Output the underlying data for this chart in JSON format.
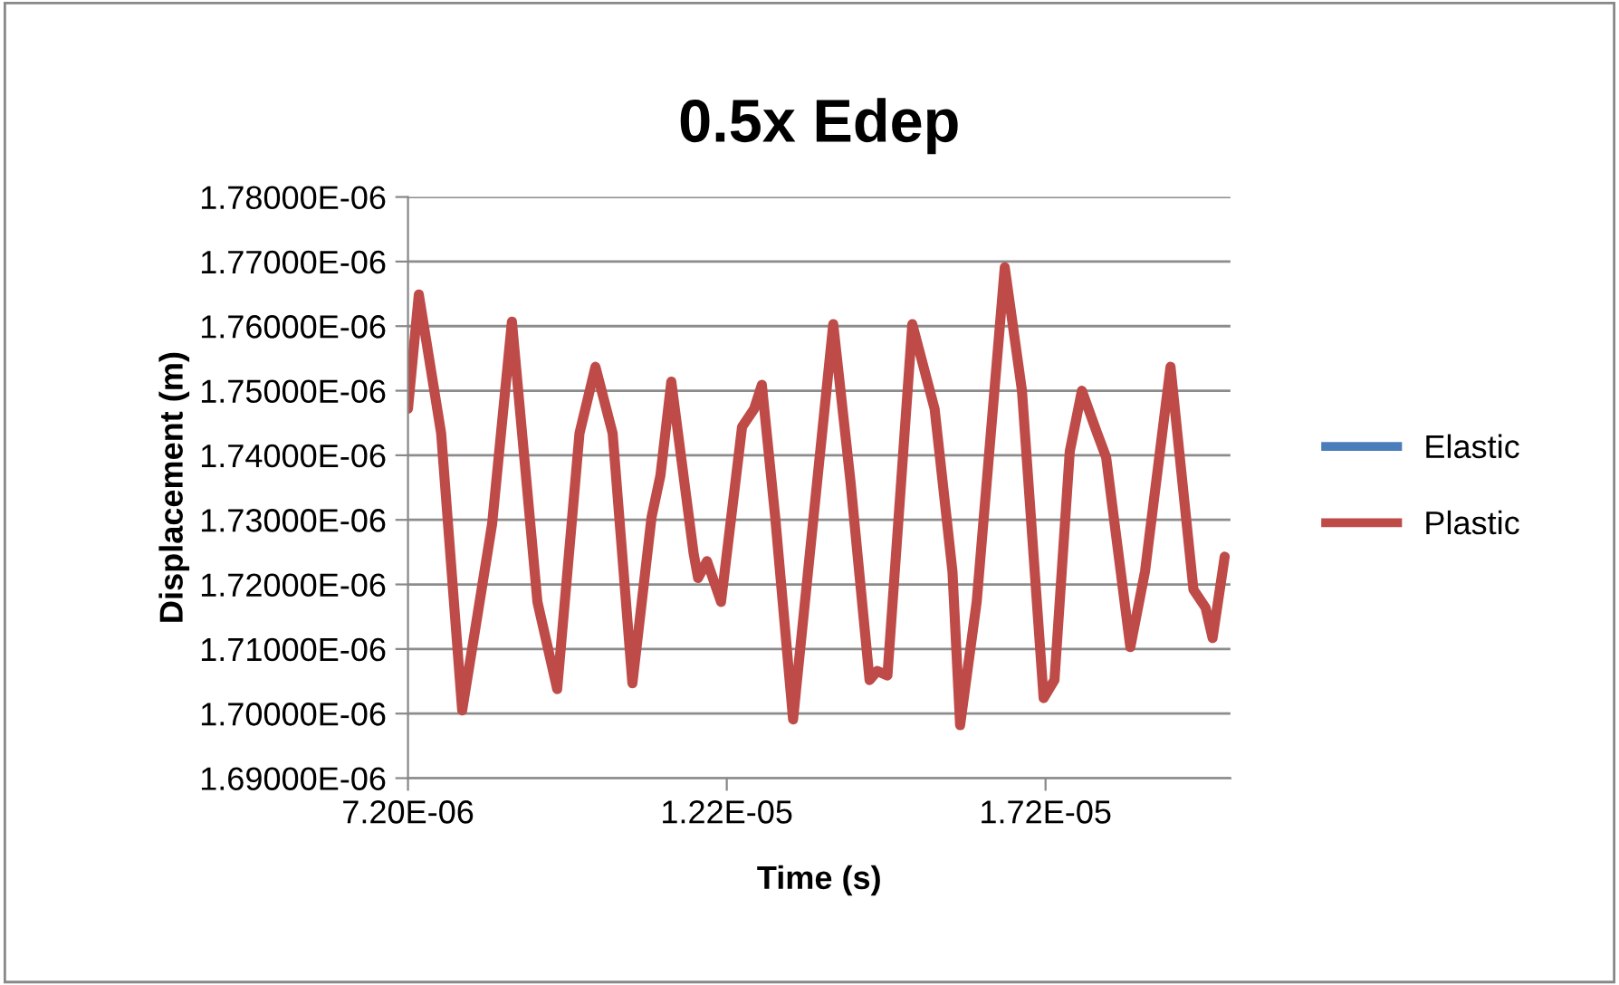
{
  "chart_data": {
    "type": "line",
    "title": "0.5x Edep",
    "xlabel": "Time (s)",
    "ylabel": "Displacement (m)",
    "x": [
      7.2e-06,
      7.37e-06,
      7.72e-06,
      8.05e-06,
      8.52e-06,
      8.83e-06,
      9.23e-06,
      9.54e-06,
      9.89e-06,
      1.014e-05,
      1.041e-05,
      1.072e-05,
      1.102e-05,
      1.116e-05,
      1.133e-05,
      1.168e-05,
      1.175e-05,
      1.189e-05,
      1.211e-05,
      1.244e-05,
      1.263e-05,
      1.275e-05,
      1.296e-05,
      1.324e-05,
      1.357e-05,
      1.387e-05,
      1.414e-05,
      1.444e-05,
      1.456e-05,
      1.472e-05,
      1.511e-05,
      1.546e-05,
      1.574e-05,
      1.586e-05,
      1.612e-05,
      1.656e-05,
      1.683e-05,
      1.717e-05,
      1.734e-05,
      1.758e-05,
      1.777e-05,
      1.801e-05,
      1.815e-05,
      1.853e-05,
      1.876e-05,
      1.916e-05,
      1.952e-05,
      1.971e-05,
      1.982e-05,
      2.001e-05
    ],
    "series": [
      {
        "name": "Elastic",
        "color": "#4a7ebb",
        "values": [
          null,
          null,
          null,
          null,
          null,
          null,
          null,
          null,
          null,
          null,
          null,
          null,
          null,
          null,
          null,
          null,
          null,
          null,
          null,
          null,
          null,
          null,
          null,
          null,
          null,
          null,
          null,
          null,
          null,
          null,
          null,
          null,
          null,
          null,
          null,
          null,
          null,
          null,
          null,
          null,
          null,
          null,
          null,
          null,
          null,
          null,
          null,
          null,
          null,
          null
        ]
      },
      {
        "name": "Plastic",
        "color": "#be4b48",
        "values": [
          1.7472e-06,
          1.7649e-06,
          1.7434e-06,
          1.7005e-06,
          1.7294e-06,
          1.7607e-06,
          1.7173e-06,
          1.7038e-06,
          1.7434e-06,
          1.7537e-06,
          1.7434e-06,
          1.7047e-06,
          1.7304e-06,
          1.7369e-06,
          1.7514e-06,
          1.7248e-06,
          1.721e-06,
          1.7236e-06,
          1.7173e-06,
          1.7444e-06,
          1.7472e-06,
          1.7509e-06,
          1.7304e-06,
          1.6991e-06,
          1.7313e-06,
          1.7603e-06,
          1.736e-06,
          1.7052e-06,
          1.7066e-06,
          1.7059e-06,
          1.7603e-06,
          1.7472e-06,
          1.722e-06,
          1.6982e-06,
          1.7173e-06,
          1.7691e-06,
          1.75e-06,
          1.7024e-06,
          1.7052e-06,
          1.7406e-06,
          1.75e-06,
          1.7434e-06,
          1.7397e-06,
          1.7103e-06,
          1.722e-06,
          1.7537e-06,
          1.7192e-06,
          1.7164e-06,
          1.7117e-06,
          1.7243e-06
        ]
      }
    ],
    "xlim": [
      7.2e-06,
      2.01e-05
    ],
    "xticks": [
      {
        "value": 7.2e-06,
        "label": "7.20E-06"
      },
      {
        "value": 1.22e-05,
        "label": "1.22E-05"
      },
      {
        "value": 1.72e-05,
        "label": "1.72E-05"
      }
    ],
    "ylim": [
      1.69e-06,
      1.78e-06
    ],
    "yticks": [
      {
        "value": 1.69e-06,
        "label": "1.69000E-06"
      },
      {
        "value": 1.7e-06,
        "label": "1.70000E-06"
      },
      {
        "value": 1.71e-06,
        "label": "1.71000E-06"
      },
      {
        "value": 1.72e-06,
        "label": "1.72000E-06"
      },
      {
        "value": 1.73e-06,
        "label": "1.73000E-06"
      },
      {
        "value": 1.74e-06,
        "label": "1.74000E-06"
      },
      {
        "value": 1.75e-06,
        "label": "1.75000E-06"
      },
      {
        "value": 1.76e-06,
        "label": "1.76000E-06"
      },
      {
        "value": 1.77e-06,
        "label": "1.77000E-06"
      },
      {
        "value": 1.78e-06,
        "label": "1.78000E-06"
      }
    ],
    "grid": "y",
    "legend": "right",
    "marker": "none",
    "line_style": "solid"
  }
}
